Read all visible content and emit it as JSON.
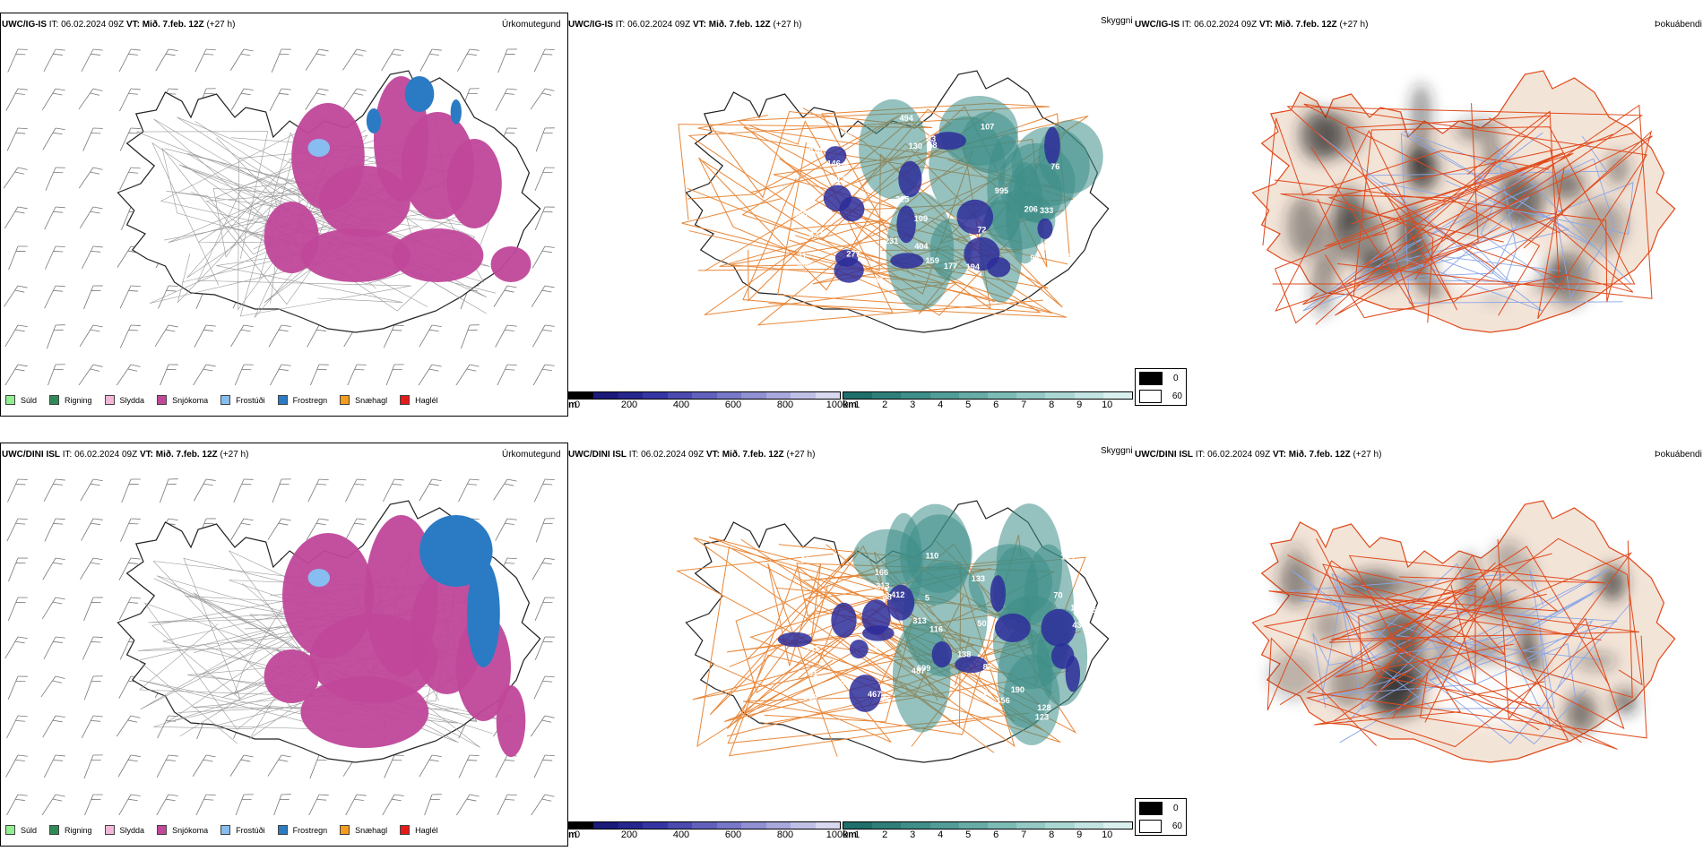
{
  "rows": [
    {
      "id": "top",
      "model_label": "UWC/IG-IS",
      "it_label": "IT:",
      "it_value": "06.02.2024 09Z",
      "vt_label": "VT:",
      "vt_value": "Mið. 7.feb. 12Z",
      "lead": "(+27 h)",
      "panel_titles": [
        "Úrkomutegund",
        "Skyggni",
        "Þokuábendi"
      ]
    },
    {
      "id": "bottom",
      "model_label": "UWC/DINI ISL",
      "it_label": "IT:",
      "it_value": "06.02.2024 09Z",
      "vt_label": "VT:",
      "vt_value": "Mið. 7.feb. 12Z",
      "lead": "(+27 h)",
      "panel_titles": [
        "Úrkomutegund",
        "Skyggni",
        "Þokuábendi"
      ]
    }
  ],
  "precip_legend": [
    {
      "label": "Súld",
      "color": "#90ee90"
    },
    {
      "label": "Rigning",
      "color": "#2e8b57"
    },
    {
      "label": "Slydda",
      "color": "#f4b6d8"
    },
    {
      "label": "Snjókoma",
      "color": "#c0479a"
    },
    {
      "label": "Frostúði",
      "color": "#87bdf0"
    },
    {
      "label": "Frostregn",
      "color": "#2b7bc4"
    },
    {
      "label": "Snæhagl",
      "color": "#f39c1e"
    },
    {
      "label": "Haglél",
      "color": "#e41a1c"
    }
  ],
  "visibility_m_scale": {
    "unit": "m",
    "ticks": [
      "0",
      "200",
      "400",
      "600",
      "800",
      "1000"
    ],
    "colors": [
      "#000000",
      "#1a1a7a",
      "#26268f",
      "#3535a3",
      "#4a4ab0",
      "#6161bd",
      "#7878c8",
      "#9090d3",
      "#a8a8dd",
      "#c0c0e7",
      "#d8d8f1"
    ]
  },
  "visibility_km_scale": {
    "unit": "km",
    "ticks": [
      "1",
      "2",
      "3",
      "4",
      "5",
      "6",
      "7",
      "8",
      "9",
      "10"
    ],
    "colors": [
      "#1f6f6b",
      "#2e7f7a",
      "#3e8e89",
      "#529d98",
      "#67aca7",
      "#7dbbb6",
      "#94c9c5",
      "#abd7d3",
      "#c3e4e1",
      "#daf0ee"
    ]
  },
  "fog_legend": {
    "items": [
      {
        "label": "0",
        "color": "#000000"
      },
      {
        "label": "60",
        "color": "#ffffff"
      }
    ]
  },
  "visibility_labels": {
    "top": [
      "72",
      "76",
      "58",
      "31",
      "170",
      "146",
      "159",
      "129",
      "225",
      "142",
      "109",
      "83",
      "194",
      "145",
      "206",
      "136",
      "220",
      "107",
      "995",
      "244",
      "494",
      "308",
      "632",
      "231",
      "130",
      "139",
      "333",
      "337",
      "30",
      "277",
      "404",
      "177",
      "96"
    ],
    "bottom": [
      "70",
      "86",
      "133",
      "128",
      "144",
      "190",
      "166",
      "110",
      "166",
      "156",
      "412",
      "501",
      "467",
      "124",
      "191",
      "141",
      "699",
      "104",
      "313",
      "306",
      "138",
      "87",
      "123",
      "213",
      "91",
      "88",
      "116",
      "216",
      "250",
      "487",
      "437",
      "0",
      "5"
    ]
  },
  "colors": {
    "land_fill": "#f3e4d8",
    "road_orange": "#e8883a",
    "road_red": "#e04a1c",
    "river_blue": "#8aa6e6",
    "snow_magenta": "#c0479a",
    "frost_blue": "#2b7bc4",
    "frost_light": "#87bdf0",
    "teal": "#3e8e89",
    "navy": "#2d2d9a"
  }
}
